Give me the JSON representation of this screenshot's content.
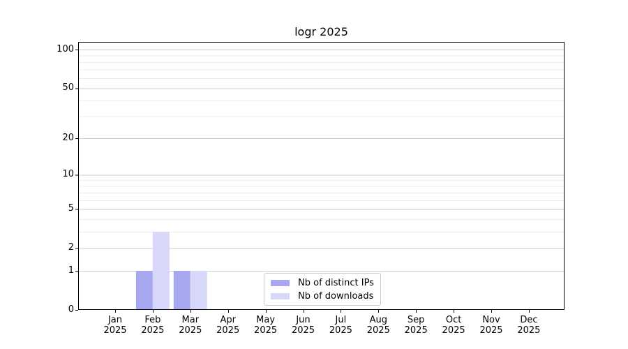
{
  "chart_data": {
    "type": "bar",
    "title": "logr 2025",
    "categories": [
      "Jan",
      "Feb",
      "Mar",
      "Apr",
      "May",
      "Jun",
      "Jul",
      "Aug",
      "Sep",
      "Oct",
      "Nov",
      "Dec"
    ],
    "category_year": "2025",
    "series": [
      {
        "name": "Nb of distinct IPs",
        "color": "#a8a8f0",
        "values": [
          0,
          1,
          1,
          0,
          0,
          0,
          0,
          0,
          0,
          0,
          0,
          0
        ]
      },
      {
        "name": "Nb of downloads",
        "color": "#d8d8fa",
        "values": [
          0,
          3,
          1,
          0,
          0,
          0,
          0,
          0,
          0,
          0,
          0,
          0
        ]
      }
    ],
    "xlabel": "",
    "ylabel": "",
    "yscale": "log1p",
    "ylim": [
      0,
      115
    ],
    "yticks": [
      0,
      1,
      2,
      5,
      10,
      20,
      50,
      100
    ],
    "minor_gridlines": [
      3,
      4,
      6,
      7,
      8,
      9,
      30,
      40,
      60,
      70,
      80,
      90
    ],
    "grid": "horizontal-major-and-minor",
    "legend_position": "lower-center",
    "colors": {
      "major_grid": "#cccccc",
      "minor_grid": "#ececec",
      "axis": "#000000",
      "background": "#ffffff"
    }
  }
}
